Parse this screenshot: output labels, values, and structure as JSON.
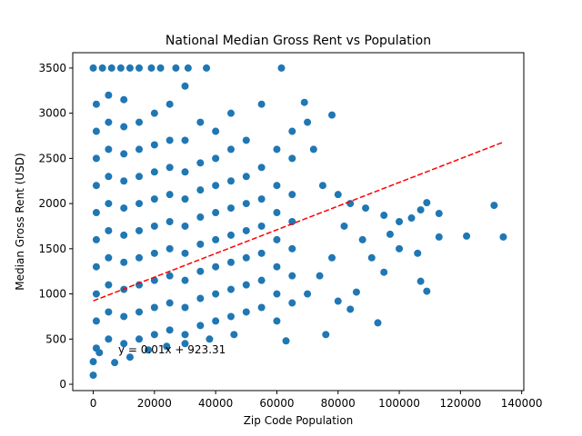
{
  "chart_data": {
    "type": "scatter",
    "title": "National Median Gross Rent vs Population",
    "x_label": "Zip Code Population",
    "y_label": "Median Gross Rent (USD)",
    "xlim": [
      -6700,
      140700
    ],
    "ylim": [
      -70,
      3670
    ],
    "xticks": [
      0,
      20000,
      40000,
      60000,
      80000,
      100000,
      120000,
      140000
    ],
    "yticks": [
      0,
      500,
      1000,
      1500,
      2000,
      2500,
      3000,
      3500
    ],
    "series": [
      {
        "color": "#1f77b4",
        "x": [
          0,
          3000,
          6000,
          9000,
          12000,
          15000,
          19000,
          22000,
          27000,
          31000,
          37000,
          61500,
          0,
          0,
          2000,
          7000,
          12000,
          18000,
          24000,
          30000,
          38000,
          46000,
          63000,
          76000,
          84000,
          93000,
          89000,
          95000,
          100000,
          104000,
          107000,
          109000,
          113000,
          122000,
          131000,
          134000,
          113000,
          107000,
          109000,
          106000,
          95000,
          100000,
          97000,
          91000,
          86000,
          80000,
          82000,
          88000,
          78000,
          69000,
          70000,
          72000,
          75000,
          80000,
          84000,
          78000,
          74000,
          70000,
          1000,
          1000,
          1000,
          1000,
          1000,
          1000,
          1000,
          1000,
          1000,
          1000,
          5000,
          5000,
          5000,
          5000,
          5000,
          5000,
          5000,
          5000,
          5000,
          5000,
          10000,
          10000,
          10000,
          10000,
          10000,
          10000,
          10000,
          10000,
          10000,
          10000,
          15000,
          15000,
          15000,
          15000,
          15000,
          15000,
          15000,
          15000,
          15000,
          20000,
          20000,
          20000,
          20000,
          20000,
          20000,
          20000,
          20000,
          20000,
          25000,
          25000,
          25000,
          25000,
          25000,
          25000,
          25000,
          25000,
          25000,
          30000,
          30000,
          30000,
          30000,
          30000,
          30000,
          30000,
          30000,
          30000,
          35000,
          35000,
          35000,
          35000,
          35000,
          35000,
          35000,
          35000,
          40000,
          40000,
          40000,
          40000,
          40000,
          40000,
          40000,
          40000,
          45000,
          45000,
          45000,
          45000,
          45000,
          45000,
          45000,
          45000,
          50000,
          50000,
          50000,
          50000,
          50000,
          50000,
          50000,
          55000,
          55000,
          55000,
          55000,
          55000,
          55000,
          55000,
          60000,
          60000,
          60000,
          60000,
          60000,
          60000,
          60000,
          65000,
          65000,
          65000,
          65000,
          65000,
          65000,
          65000
        ],
        "values": [
          3500,
          3500,
          3500,
          3500,
          3500,
          3500,
          3500,
          3500,
          3500,
          3500,
          3500,
          3500,
          100,
          250,
          350,
          240,
          300,
          380,
          420,
          450,
          500,
          550,
          480,
          550,
          830,
          680,
          1950,
          1870,
          1800,
          1840,
          1930,
          2010,
          1890,
          1640,
          1980,
          1630,
          1630,
          1140,
          1030,
          1450,
          1240,
          1500,
          1660,
          1400,
          1020,
          920,
          1750,
          1600,
          2980,
          3120,
          2900,
          2600,
          2200,
          2100,
          2000,
          1400,
          1200,
          1000,
          400,
          700,
          1000,
          1300,
          1600,
          1900,
          2200,
          2500,
          2800,
          3100,
          500,
          800,
          1100,
          1400,
          1700,
          2000,
          2300,
          2600,
          2900,
          3200,
          450,
          750,
          1050,
          1350,
          1650,
          1950,
          2250,
          2550,
          2850,
          3150,
          500,
          800,
          1100,
          1400,
          1700,
          2000,
          2300,
          2600,
          2900,
          550,
          850,
          1150,
          1450,
          1750,
          2050,
          2350,
          2650,
          3000,
          600,
          900,
          1200,
          1500,
          1800,
          2100,
          2400,
          2700,
          3100,
          550,
          850,
          1150,
          1450,
          1750,
          2050,
          2350,
          2700,
          3300,
          650,
          950,
          1250,
          1550,
          1850,
          2150,
          2450,
          2900,
          700,
          1000,
          1300,
          1600,
          1900,
          2200,
          2500,
          2800,
          750,
          1050,
          1350,
          1650,
          1950,
          2250,
          2600,
          3000,
          800,
          1100,
          1400,
          1700,
          2000,
          2300,
          2700,
          850,
          1150,
          1450,
          1750,
          2050,
          2400,
          3100,
          700,
          1000,
          1300,
          1600,
          1900,
          2200,
          2600,
          900,
          1200,
          1500,
          1800,
          2100,
          2500,
          2800
        ]
      }
    ],
    "trend_line": {
      "color": "red",
      "dashed": true,
      "x": [
        0,
        134000
      ],
      "values": [
        923,
        2680
      ]
    },
    "annotation": {
      "text": "y = 0.01x + 923.31",
      "color": "red"
    }
  }
}
